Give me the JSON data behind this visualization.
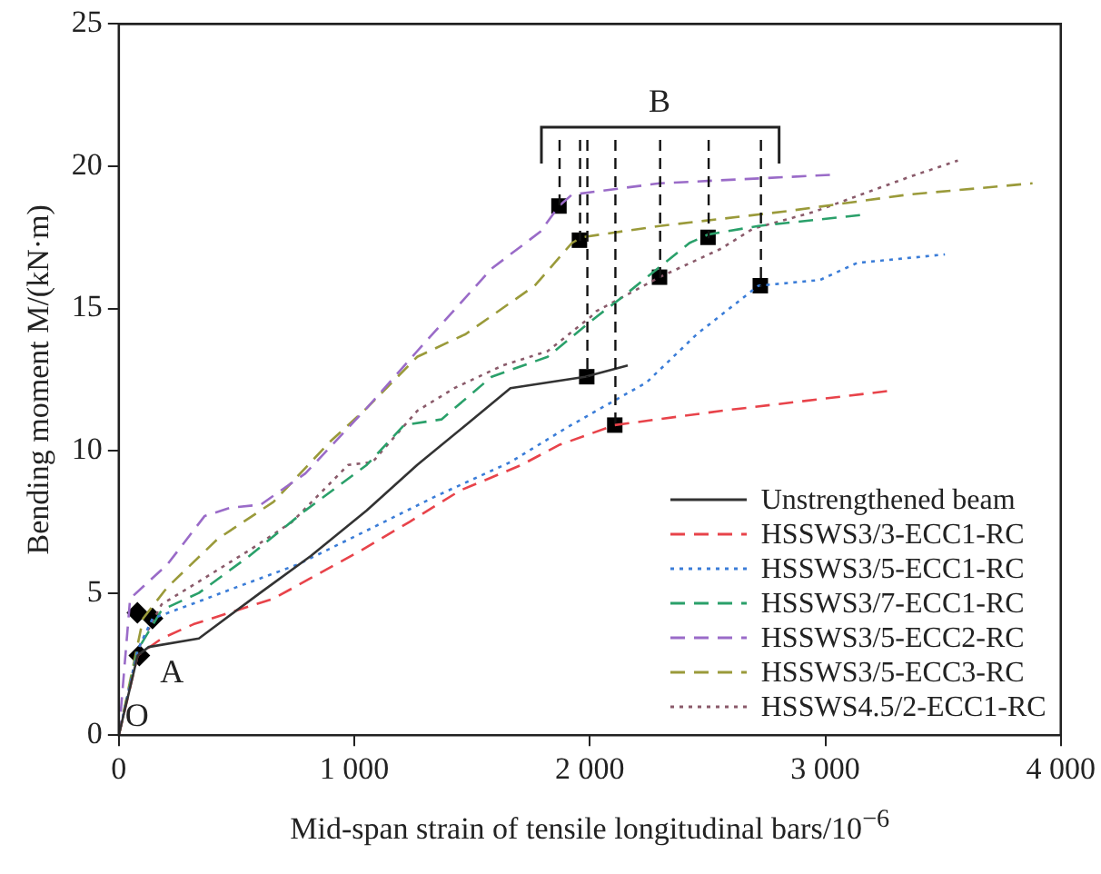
{
  "chart_data": {
    "type": "line",
    "xlabel": "Mid-span strain of tensile longitudinal bars/10$^{−6}$",
    "ylabel": "Bending moment M/(kN·m)",
    "xlim": [
      0,
      4000
    ],
    "xticks": [
      0,
      {
        "value": 1000,
        "label": "1 000"
      },
      {
        "value": 2000,
        "label": "2 000"
      },
      {
        "value": 3000,
        "label": "3 000"
      },
      {
        "value": 4000,
        "label": "4 000"
      }
    ],
    "ylim": [
      0,
      25
    ],
    "yticks": [
      0,
      5,
      10,
      15,
      20,
      25
    ],
    "grid": false,
    "legend": "bottom right",
    "series": [
      {
        "name": "Unstrengthened beam",
        "color": "#333333",
        "line_style": "solid",
        "marker": "none",
        "x": [
          0,
          80,
          127,
          340,
          600,
          815,
          1053,
          1267,
          1473,
          1663,
          1821,
          1980,
          2161
        ],
        "values": [
          0,
          2.8,
          3.1,
          3.4,
          5.0,
          6.3,
          7.9,
          9.5,
          10.9,
          12.2,
          12.4,
          12.6,
          13.0
        ]
      },
      {
        "name": "HSSWS3/3-ECC1-RC",
        "color": "#e8434a",
        "line_style": "dashed",
        "marker": "none",
        "x": [
          0,
          80,
          182,
          317,
          657,
          1030,
          1235,
          1449,
          1710,
          1869,
          2106,
          2557,
          3270
        ],
        "values": [
          0,
          2.8,
          3.4,
          3.9,
          4.8,
          6.5,
          7.5,
          8.6,
          9.5,
          10.2,
          10.9,
          11.4,
          12.1
        ]
      },
      {
        "name": "HSSWS3/5-ECC1-RC",
        "color": "#3b7dd8",
        "line_style": "dotted",
        "marker": "none",
        "x": [
          0,
          80,
          143,
          340,
          499,
          760,
          1030,
          1346,
          1663,
          1900,
          2027,
          2241,
          2455,
          2716,
          2977,
          3135,
          3508
        ],
        "values": [
          0,
          3.0,
          4.1,
          4.7,
          5.2,
          6.0,
          7.1,
          8.4,
          9.6,
          10.8,
          11.4,
          12.4,
          14.1,
          15.8,
          16.0,
          16.6,
          16.9
        ]
      },
      {
        "name": "HSSWS3/7-ECC1-RC",
        "color": "#2aa06a",
        "line_style": "dashed",
        "marker": "none",
        "x": [
          0,
          80,
          182,
          340,
          554,
          792,
          1053,
          1211,
          1370,
          1583,
          1821,
          2027,
          2138,
          2423,
          2502,
          2716,
          3167
        ],
        "values": [
          0,
          3.0,
          4.4,
          5.0,
          6.3,
          7.9,
          9.5,
          10.9,
          11.1,
          12.6,
          13.3,
          14.7,
          15.4,
          17.3,
          17.6,
          17.9,
          18.3
        ]
      },
      {
        "name": "HSSWS3/5-ECC2-RC",
        "color": "#9a6bc8",
        "line_style": "dashed",
        "marker": "none",
        "x": [
          0,
          48,
          206,
          364,
          475,
          602,
          792,
          1053,
          1267,
          1583,
          1790,
          1869,
          1924,
          2296,
          3032
        ],
        "values": [
          0,
          4.8,
          6.0,
          7.7,
          8.0,
          8.1,
          9.2,
          11.5,
          13.5,
          16.4,
          17.7,
          18.6,
          19.0,
          19.4,
          19.7
        ]
      },
      {
        "name": "HSSWS3/5-ECC3-RC",
        "color": "#9a9a3a",
        "line_style": "dashed",
        "marker": "none",
        "x": [
          0,
          103,
          206,
          420,
          657,
          895,
          1053,
          1267,
          1473,
          1766,
          1924,
          1964,
          2296,
          2819,
          3349,
          3880
        ],
        "values": [
          0,
          4.1,
          5.2,
          6.9,
          8.2,
          10.3,
          11.5,
          13.3,
          14.1,
          15.8,
          17.3,
          17.5,
          17.9,
          18.4,
          19.0,
          19.4
        ]
      },
      {
        "name": "HSSWS4.5/2-ECC1-RC",
        "color": "#8a5a6a",
        "line_style": "dotted",
        "marker": "none",
        "x": [
          0,
          80,
          182,
          340,
          554,
          736,
          974,
          1077,
          1267,
          1425,
          1631,
          1821,
          2003,
          2027,
          2296,
          2557,
          2692,
          2953,
          3349,
          3563
        ],
        "values": [
          0,
          3.0,
          4.6,
          5.4,
          6.5,
          7.5,
          9.5,
          9.6,
          11.4,
          12.2,
          13.0,
          13.5,
          14.7,
          14.9,
          16.1,
          17.1,
          17.8,
          18.4,
          19.6,
          20.2
        ]
      },
      {
        "type": "scatter",
        "color": "#000000",
        "marker": "diamond",
        "x": [
          87,
          79,
          143
        ],
        "values": [
          2.8,
          4.3,
          4.1
        ]
      },
      {
        "type": "scatter",
        "color": "#000000",
        "marker": "square",
        "x": [
          1869,
          1956,
          1987,
          2106,
          2296,
          2502,
          2724
        ],
        "values": [
          18.6,
          17.4,
          12.6,
          10.9,
          16.1,
          17.5,
          15.8
        ]
      }
    ],
    "annotations": [
      "O",
      "A",
      {
        "text": "B",
        "x": 2296,
        "y": 16.1
      }
    ]
  }
}
